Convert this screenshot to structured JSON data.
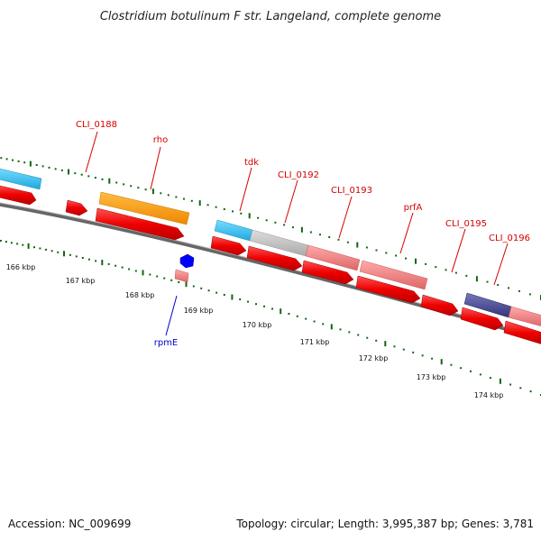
{
  "header": {
    "title": "Clostridium botulinum F str. Langeland, complete genome"
  },
  "footer": {
    "accession": "Accession: NC_009699",
    "summary": "Topology: circular; Length: 3,995,387 bp; Genes: 3,781"
  },
  "axis": {
    "tick_labels": [
      "166 kbp",
      "167 kbp",
      "168 kbp",
      "169 kbp",
      "170 kbp",
      "171 kbp",
      "172 kbp",
      "173 kbp",
      "174 kbp"
    ]
  },
  "gene_labels": {
    "cli_0188": "CLI_0188",
    "rho": "rho",
    "tdk": "tdk",
    "cli_0192": "CLI_0192",
    "cli_0193": "CLI_0193",
    "prfa": "prfA",
    "cli_0195": "CLI_0195",
    "cli_0196": "CLI_0196",
    "rpme": "rpmE"
  },
  "colors": {
    "cds": "#ee0000",
    "light_blue": "#33bbee",
    "orange": "#ff9900",
    "pink": "#ee7777",
    "gray": "#bbbbbb",
    "navy": "#444488",
    "blue": "#0000ff",
    "backbone": "#777777",
    "tick_green": "#116611",
    "label_red": "#d40000",
    "label_blue": "#0000cc"
  }
}
